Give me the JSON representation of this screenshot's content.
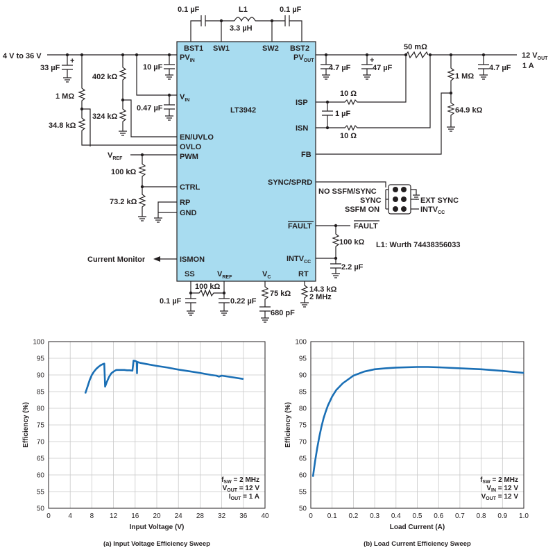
{
  "schematic": {
    "ic_name": "LT3942",
    "ic_color": "#a8dcf0",
    "accent_blue": "#1a6fb5",
    "pins_top": [
      "BST1",
      "SW1",
      "SW2",
      "BST2"
    ],
    "pins_left": {
      "pvin": "PV",
      "pvin_sub": "IN",
      "vin": "V",
      "vin_sub": "IN",
      "en": "EN/UVLO",
      "ovlo": "OVLO",
      "pwm": "PWM",
      "ctrl": "CTRL",
      "rp": "RP",
      "gnd": "GND",
      "ismon": "ISMON"
    },
    "pins_right": {
      "pvout": "PV",
      "pvout_sub": "OUT",
      "isp": "ISP",
      "isn": "ISN",
      "fb": "FB",
      "sync": "SYNC/SPRD",
      "fault": "FAULT",
      "intvcc": "INTV",
      "intvcc_sub": "CC"
    },
    "pins_bottom": {
      "ss": "SS",
      "vref": "V",
      "vref_sub": "REF",
      "vc": "V",
      "vc_sub": "C",
      "rt": "RT"
    },
    "components": {
      "c_bst1": "0.1 µF",
      "c_bst2": "0.1 µF",
      "l1": "L1",
      "l1_val": "3.3 µH",
      "vin_range": "4 V to 36 V",
      "c_in": "33 µF",
      "c_plus": "+",
      "r_402k": "402 kΩ",
      "r_324k": "324 kΩ",
      "r_1m": "1 MΩ",
      "r_34k8": "34.8 kΩ",
      "c_10u": "10 µF",
      "c_047": "0.47 µF",
      "vref_left": "V",
      "vref_left_sub": "REF",
      "r_100k": "100 kΩ",
      "r_73k2": "73.2 kΩ",
      "current_monitor": "Current Monitor",
      "c_ss": "0.1 µF",
      "r_ss": "100 kΩ",
      "c_vref": "0.22 µF",
      "r_vc": "75 kΩ",
      "c_vc": "680 pF",
      "r_rt": "14.3 kΩ",
      "rt_freq": "2 MHz",
      "c_out1": "4.7 µF",
      "c_out2": "47 µF",
      "r_sense": "50 mΩ",
      "r_fb_top": "1 MΩ",
      "r_fb_bot": "64.9 kΩ",
      "c_out3": "4.7 µF",
      "vout": "12 V",
      "vout_sub": "OUT",
      "iout": "1 A",
      "r_isp": "10 Ω",
      "c_1u": "1 µF",
      "r_isn": "10 Ω",
      "no_ssfm": "NO SSFM/SYNC",
      "sync_opt": "SYNC",
      "ssfm_on": "SSFM ON",
      "ext_sync": "EXT SYNC",
      "intvcc_opt": "INTV",
      "intvcc_opt_sub": "CC",
      "fault_label": "FAULT",
      "r_fault": "100 kΩ",
      "c_intvcc": "2.2 µF",
      "inductor_note": "L1: Wurth 74438356033"
    }
  },
  "chart_data": [
    {
      "type": "line",
      "caption": "(a) Input Voltage Efficiency Sweep",
      "xlabel": "Input Voltage (V)",
      "ylabel": "Efficiency (%)",
      "xlim": [
        0,
        40
      ],
      "ylim": [
        50,
        100
      ],
      "xticks": [
        "0",
        "4",
        "8",
        "12",
        "16",
        "20",
        "24",
        "28",
        "32",
        "36",
        "40"
      ],
      "yticks": [
        "50",
        "55",
        "60",
        "65",
        "70",
        "75",
        "80",
        "85",
        "90",
        "95",
        "100"
      ],
      "grid": true,
      "annotation": [
        {
          "main": "f",
          "sub": "SW",
          "rest": " = 2 MHz"
        },
        {
          "main": "V",
          "sub": "OUT",
          "rest": " = 12 V"
        },
        {
          "main": "I",
          "sub": "OUT",
          "rest": " = 1 A"
        }
      ],
      "color": "#1a6fb5",
      "series": [
        {
          "x": [
            6.8,
            7.2,
            7.6,
            8.0,
            8.4,
            8.8,
            9.2,
            9.6,
            10.0,
            10.3,
            10.4,
            10.45,
            10.8,
            11.2,
            11.6,
            12.0,
            12.4,
            12.6,
            13.0,
            13.5,
            14.0,
            14.5,
            15.0,
            15.5,
            15.7,
            16.0,
            16.3,
            16.35,
            16.4,
            17.0,
            18.0,
            20.0,
            22.0,
            24.0,
            26.0,
            28.0,
            30.0,
            31.0,
            31.5,
            32.0,
            34.0,
            36.0
          ],
          "y": [
            84.5,
            86.5,
            88.5,
            90.0,
            91.0,
            91.8,
            92.4,
            92.9,
            93.2,
            93.4,
            89.0,
            86.5,
            88.0,
            89.5,
            90.5,
            91.0,
            91.4,
            91.5,
            91.5,
            91.5,
            91.5,
            91.4,
            91.4,
            91.3,
            94.3,
            94.2,
            94.0,
            90.5,
            93.9,
            93.6,
            93.3,
            92.7,
            92.2,
            91.6,
            91.1,
            90.6,
            90.0,
            89.8,
            89.5,
            89.8,
            89.3,
            88.8
          ]
        }
      ]
    },
    {
      "type": "line",
      "caption": "(b) Load Current Efficiency Sweep",
      "xlabel": "Load Current (A)",
      "ylabel": "Efficiency (%)",
      "xlim": [
        0,
        1.0
      ],
      "ylim": [
        50,
        100
      ],
      "xticks": [
        "0",
        "0.1",
        "0.2",
        "0.3",
        "0.4",
        "0.5",
        "0.6",
        "0.7",
        "0.8",
        "0.9",
        "1.0"
      ],
      "yticks": [
        "50",
        "55",
        "60",
        "65",
        "70",
        "75",
        "80",
        "85",
        "90",
        "95",
        "100"
      ],
      "grid": true,
      "annotation": [
        {
          "main": "f",
          "sub": "SW",
          "rest": " = 2 MHz"
        },
        {
          "main": "V",
          "sub": "IN",
          "rest": " = 12 V"
        },
        {
          "main": "V",
          "sub": "OUT",
          "rest": " = 12 V"
        }
      ],
      "color": "#1a6fb5",
      "series": [
        {
          "x": [
            0.01,
            0.02,
            0.03,
            0.04,
            0.05,
            0.06,
            0.07,
            0.08,
            0.1,
            0.12,
            0.15,
            0.2,
            0.25,
            0.3,
            0.35,
            0.4,
            0.5,
            0.55,
            0.6,
            0.7,
            0.8,
            0.9,
            1.0
          ],
          "y": [
            59.5,
            64.0,
            68.0,
            71.5,
            74.5,
            77.0,
            79.0,
            80.8,
            83.5,
            85.5,
            87.5,
            89.8,
            91.0,
            91.7,
            92.0,
            92.2,
            92.4,
            92.4,
            92.3,
            92.0,
            91.7,
            91.2,
            90.6
          ]
        }
      ]
    }
  ]
}
